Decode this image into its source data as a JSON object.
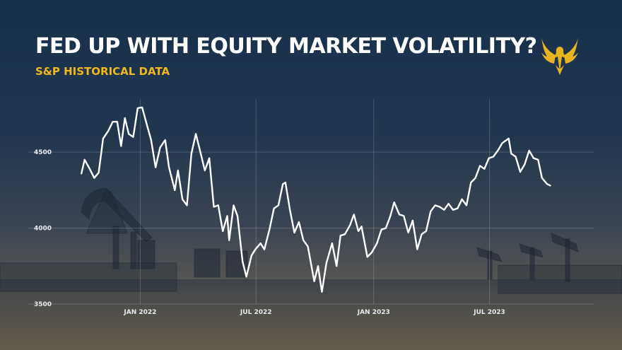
{
  "title": "FED UP WITH EQUITY MARKET VOLATILITY?",
  "subtitle": "S&P HISTORICAL DATA",
  "icons": {
    "logo": "eagle-icon"
  },
  "colors": {
    "title": "#ffffff",
    "subtitle": "#f0b81c",
    "line": "#ffffff",
    "logo": "#e8b321"
  },
  "chart_data": {
    "type": "line",
    "title": "",
    "xlabel": "",
    "ylabel": "",
    "ylim": [
      3500,
      4850
    ],
    "xlim": [
      "2021-09-01",
      "2023-11-10"
    ],
    "grid": true,
    "legend": "none",
    "y_ticks": [
      3500,
      4000,
      4500
    ],
    "x_ticks": [
      {
        "date": "2022-01-01",
        "label": "JAN 2022"
      },
      {
        "date": "2022-07-01",
        "label": "JUL 2022"
      },
      {
        "date": "2023-01-01",
        "label": "JAN 2023"
      },
      {
        "date": "2023-07-01",
        "label": "JUL 2023"
      }
    ],
    "series": [
      {
        "x": [
          "2021-10-01",
          "2021-10-06",
          "2021-10-14",
          "2021-10-21",
          "2021-10-28",
          "2021-11-04",
          "2021-11-12",
          "2021-11-19",
          "2021-11-26",
          "2021-12-02",
          "2021-12-08",
          "2021-12-14",
          "2021-12-21",
          "2021-12-28",
          "2022-01-04",
          "2022-01-10",
          "2022-01-18",
          "2022-01-25",
          "2022-02-01",
          "2022-02-09",
          "2022-02-15",
          "2022-02-24",
          "2022-03-01",
          "2022-03-08",
          "2022-03-15",
          "2022-03-22",
          "2022-03-29",
          "2022-04-05",
          "2022-04-12",
          "2022-04-19",
          "2022-04-26",
          "2022-05-03",
          "2022-05-10",
          "2022-05-17",
          "2022-05-20",
          "2022-05-27",
          "2022-06-02",
          "2022-06-10",
          "2022-06-16",
          "2022-06-24",
          "2022-06-30",
          "2022-07-08",
          "2022-07-14",
          "2022-07-22",
          "2022-07-29",
          "2022-08-05",
          "2022-08-12",
          "2022-08-16",
          "2022-08-23",
          "2022-08-30",
          "2022-09-06",
          "2022-09-13",
          "2022-09-20",
          "2022-09-30",
          "2022-10-06",
          "2022-10-12",
          "2022-10-19",
          "2022-10-28",
          "2022-11-04",
          "2022-11-10",
          "2022-11-17",
          "2022-11-25",
          "2022-12-01",
          "2022-12-08",
          "2022-12-13",
          "2022-12-22",
          "2022-12-29",
          "2023-01-06",
          "2023-01-13",
          "2023-01-20",
          "2023-01-27",
          "2023-02-02",
          "2023-02-10",
          "2023-02-17",
          "2023-02-24",
          "2023-03-03",
          "2023-03-10",
          "2023-03-17",
          "2023-03-24",
          "2023-03-31",
          "2023-04-07",
          "2023-04-14",
          "2023-04-21",
          "2023-04-28",
          "2023-05-05",
          "2023-05-12",
          "2023-05-19",
          "2023-05-26",
          "2023-06-02",
          "2023-06-09",
          "2023-06-16",
          "2023-06-23",
          "2023-06-30",
          "2023-07-07",
          "2023-07-14",
          "2023-07-21",
          "2023-07-31",
          "2023-08-04",
          "2023-08-11",
          "2023-08-18",
          "2023-08-25",
          "2023-09-01",
          "2023-09-08",
          "2023-09-15",
          "2023-09-21",
          "2023-09-29",
          "2023-10-04"
        ],
        "values": [
          4360,
          4450,
          4390,
          4330,
          4365,
          4590,
          4640,
          4700,
          4700,
          4540,
          4725,
          4620,
          4600,
          4790,
          4795,
          4700,
          4580,
          4400,
          4530,
          4580,
          4400,
          4250,
          4380,
          4190,
          4150,
          4490,
          4620,
          4500,
          4380,
          4460,
          4140,
          4150,
          3980,
          4080,
          3920,
          4150,
          4080,
          3780,
          3680,
          3820,
          3860,
          3900,
          3860,
          3990,
          4130,
          4150,
          4290,
          4300,
          4120,
          3970,
          4040,
          3920,
          3880,
          3650,
          3750,
          3580,
          3770,
          3900,
          3750,
          3950,
          3960,
          4020,
          4090,
          3980,
          4010,
          3810,
          3840,
          3900,
          3990,
          4000,
          4080,
          4170,
          4090,
          4080,
          3970,
          4050,
          3860,
          3960,
          3980,
          4110,
          4150,
          4140,
          4120,
          4160,
          4120,
          4130,
          4190,
          4150,
          4300,
          4330,
          4410,
          4390,
          4460,
          4470,
          4510,
          4560,
          4590,
          4490,
          4470,
          4370,
          4420,
          4510,
          4460,
          4450,
          4330,
          4290,
          4280
        ]
      }
    ]
  }
}
